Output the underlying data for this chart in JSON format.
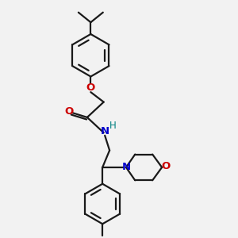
{
  "bg_color": "#f2f2f2",
  "bond_color": "#1a1a1a",
  "O_color": "#cc0000",
  "N_color": "#0000cc",
  "H_color": "#008080",
  "line_width": 1.6,
  "figsize": [
    3.0,
    3.0
  ],
  "dpi": 100,
  "xlim": [
    0,
    10
  ],
  "ylim": [
    0,
    10
  ]
}
